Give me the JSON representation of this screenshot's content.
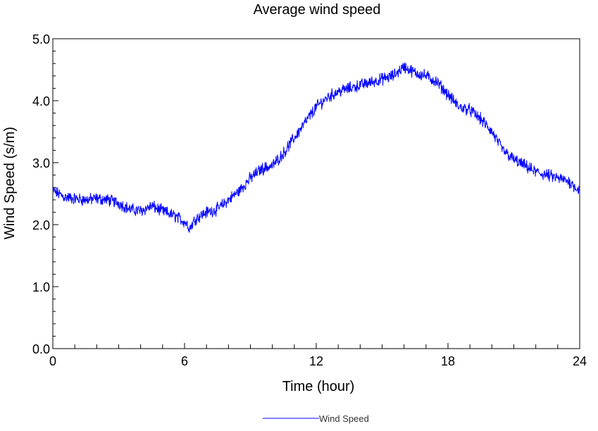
{
  "chart_data": {
    "type": "line",
    "title": "Average wind speed",
    "xlabel": "Time (hour)",
    "ylabel": "Wind Speed (s/m)",
    "xlim": [
      0,
      24
    ],
    "ylim": [
      0,
      5
    ],
    "x_ticks": [
      "0",
      "6",
      "12",
      "18",
      "24"
    ],
    "y_ticks": [
      "0.0",
      "1.0",
      "2.0",
      "3.0",
      "4.0",
      "5.0"
    ],
    "grid": false,
    "legend_position": "bottom-center",
    "series": [
      {
        "name": "Wind Speed",
        "color": "#0000ff",
        "noise_amplitude": 0.08,
        "x": [
          0,
          0.5,
          1,
          1.5,
          2,
          2.5,
          3,
          3.5,
          4,
          4.5,
          5,
          5.5,
          6,
          6.25,
          6.5,
          7,
          7.5,
          8,
          8.5,
          9,
          9.5,
          10,
          10.5,
          11,
          11.5,
          12,
          12.5,
          13,
          13.5,
          14,
          14.5,
          15,
          15.5,
          16,
          16.5,
          17,
          17.5,
          18,
          18.5,
          19,
          19.5,
          20,
          20.5,
          21,
          21.5,
          22,
          22.5,
          23,
          23.5,
          24
        ],
        "y": [
          2.55,
          2.45,
          2.42,
          2.4,
          2.42,
          2.4,
          2.35,
          2.25,
          2.22,
          2.3,
          2.22,
          2.15,
          2.05,
          1.95,
          2.1,
          2.2,
          2.25,
          2.4,
          2.55,
          2.75,
          2.9,
          2.95,
          3.15,
          3.4,
          3.65,
          3.9,
          4.05,
          4.15,
          4.2,
          4.25,
          4.3,
          4.35,
          4.4,
          4.55,
          4.45,
          4.4,
          4.3,
          4.1,
          3.9,
          3.85,
          3.7,
          3.5,
          3.2,
          3.05,
          2.95,
          2.85,
          2.8,
          2.75,
          2.7,
          2.55
        ]
      }
    ]
  }
}
